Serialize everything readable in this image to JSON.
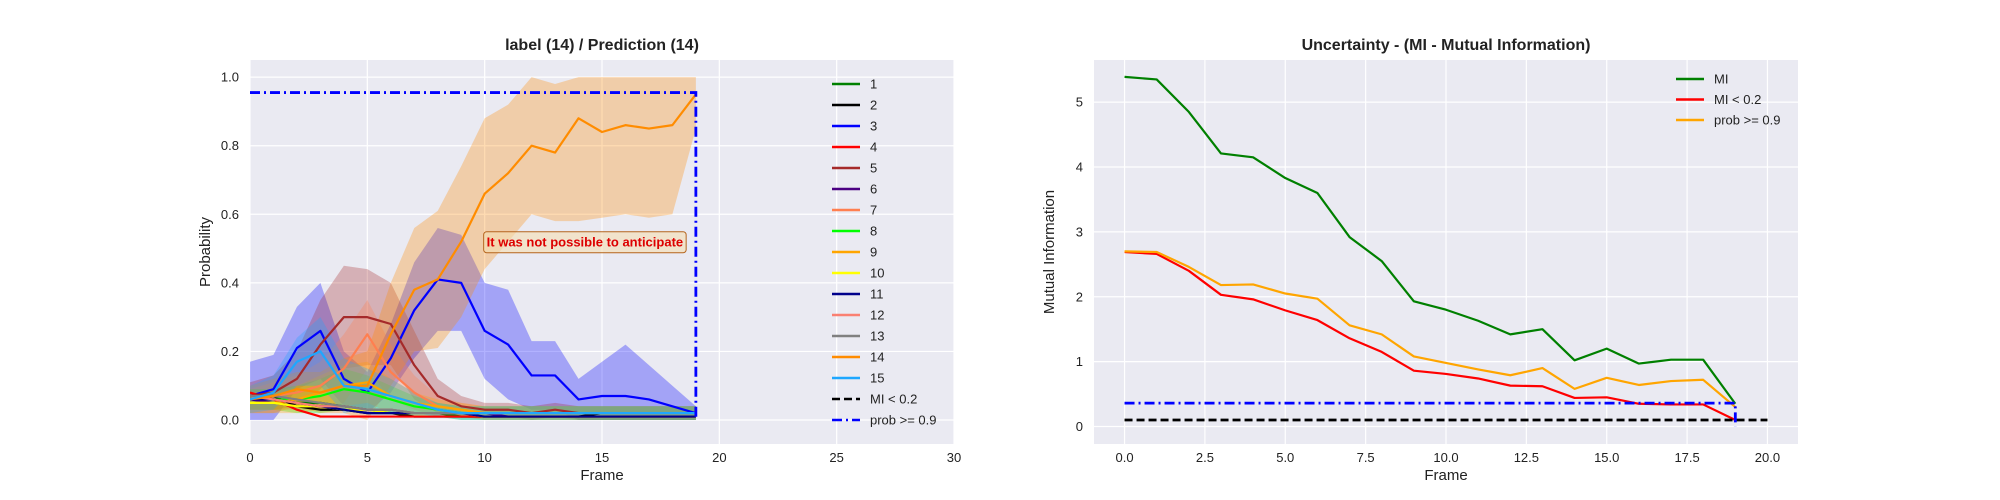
{
  "chart_data": [
    {
      "type": "line",
      "title": "label (14) / Prediction (14)",
      "xlabel": "Frame",
      "ylabel": "Probability",
      "xlim": [
        0,
        30
      ],
      "ylim": [
        -0.07,
        1.05
      ],
      "xticks": [
        "0",
        "5",
        "10",
        "15",
        "20",
        "25",
        "30"
      ],
      "yticks": [
        "0.0",
        "0.2",
        "0.4",
        "0.6",
        "0.8",
        "1.0"
      ],
      "grid": true,
      "legend_position": "right",
      "x": [
        0,
        1,
        2,
        3,
        4,
        5,
        6,
        7,
        8,
        9,
        10,
        11,
        12,
        13,
        14,
        15,
        16,
        17,
        18,
        19
      ],
      "series": [
        {
          "name": "1",
          "color": "#008000",
          "values": [
            0.07,
            0.06,
            0.05,
            0.05,
            0.04,
            0.03,
            0.02,
            0.02,
            0.02,
            0.01,
            0.01,
            0.01,
            0.01,
            0.01,
            0.01,
            0.01,
            0.01,
            0.01,
            0.01,
            0.01
          ]
        },
        {
          "name": "2",
          "color": "#000000",
          "values": [
            0.07,
            0.07,
            0.04,
            0.03,
            0.03,
            0.02,
            0.02,
            0.01,
            0.01,
            0.01,
            0.01,
            0.01,
            0.01,
            0.01,
            0.01,
            0.02,
            0.02,
            0.02,
            0.02,
            0.02
          ],
          "band": [
            0.03,
            0.04
          ]
        },
        {
          "name": "3",
          "color": "#0000ff",
          "values": [
            0.07,
            0.09,
            0.21,
            0.26,
            0.12,
            0.08,
            0.18,
            0.32,
            0.41,
            0.4,
            0.26,
            0.22,
            0.13,
            0.13,
            0.06,
            0.07,
            0.07,
            0.06,
            0.04,
            0.02
          ],
          "band": [
            0.1,
            0.1,
            0.12,
            0.14,
            0.08,
            0.06,
            0.1,
            0.14,
            0.15,
            0.14,
            0.14,
            0.16,
            0.1,
            0.1,
            0.06,
            0.1,
            0.15,
            0.1,
            0.06,
            0.02
          ]
        },
        {
          "name": "4",
          "color": "#ff0000",
          "values": [
            0.08,
            0.06,
            0.03,
            0.01,
            0.01,
            0.01,
            0.01,
            0.01,
            0.01,
            0.01,
            0.01,
            0.01,
            0.01,
            0.01,
            0.01,
            0.01,
            0.01,
            0.01,
            0.01,
            0.01
          ]
        },
        {
          "name": "5",
          "color": "#a52a2a",
          "values": [
            0.07,
            0.08,
            0.12,
            0.22,
            0.3,
            0.3,
            0.28,
            0.16,
            0.07,
            0.04,
            0.03,
            0.03,
            0.02,
            0.03,
            0.02,
            0.02,
            0.02,
            0.02,
            0.02,
            0.02
          ],
          "band": [
            0.04,
            0.05,
            0.08,
            0.13,
            0.15,
            0.14,
            0.12,
            0.1,
            0.05,
            0.03,
            0.02,
            0.02,
            0.02,
            0.02,
            0.02,
            0.02,
            0.02,
            0.02,
            0.02,
            0.02
          ]
        },
        {
          "name": "6",
          "color": "#4b0082",
          "values": [
            0.06,
            0.05,
            0.04,
            0.04,
            0.04,
            0.03,
            0.03,
            0.02,
            0.02,
            0.02,
            0.02,
            0.01,
            0.01,
            0.01,
            0.01,
            0.01,
            0.01,
            0.01,
            0.01,
            0.01
          ]
        },
        {
          "name": "7",
          "color": "#ff7f50",
          "values": [
            0.06,
            0.07,
            0.08,
            0.1,
            0.15,
            0.25,
            0.14,
            0.08,
            0.04,
            0.03,
            0.02,
            0.02,
            0.02,
            0.02,
            0.02,
            0.02,
            0.02,
            0.02,
            0.02,
            0.02
          ],
          "band": [
            0.03,
            0.04,
            0.05,
            0.07,
            0.1,
            0.1,
            0.08,
            0.05,
            0.03,
            0.02,
            0.02,
            0.02,
            0.02,
            0.02,
            0.02,
            0.02,
            0.02,
            0.02,
            0.02,
            0.02
          ]
        },
        {
          "name": "8",
          "color": "#00ff00",
          "values": [
            0.06,
            0.06,
            0.06,
            0.07,
            0.09,
            0.08,
            0.06,
            0.04,
            0.03,
            0.02,
            0.02,
            0.02,
            0.02,
            0.02,
            0.02,
            0.02,
            0.02,
            0.02,
            0.02,
            0.02
          ],
          "band": [
            0.03,
            0.03,
            0.04,
            0.05,
            0.06,
            0.05,
            0.04,
            0.03,
            0.02,
            0.02,
            0.02,
            0.02,
            0.02,
            0.02,
            0.02,
            0.02,
            0.02,
            0.02,
            0.02,
            0.02
          ]
        },
        {
          "name": "9",
          "color": "#ffa500",
          "values": [
            0.05,
            0.05,
            0.06,
            0.08,
            0.1,
            0.11,
            0.07,
            0.05,
            0.04,
            0.03,
            0.02,
            0.02,
            0.02,
            0.02,
            0.02,
            0.02,
            0.02,
            0.02,
            0.02,
            0.02
          ],
          "band": [
            0.03,
            0.03,
            0.04,
            0.05,
            0.06,
            0.06,
            0.05,
            0.03,
            0.02,
            0.02,
            0.02,
            0.02,
            0.02,
            0.02,
            0.02,
            0.02,
            0.02,
            0.02,
            0.02,
            0.02
          ]
        },
        {
          "name": "10",
          "color": "#ffff00",
          "values": [
            0.05,
            0.05,
            0.04,
            0.04,
            0.03,
            0.03,
            0.02,
            0.02,
            0.02,
            0.02,
            0.01,
            0.01,
            0.01,
            0.01,
            0.01,
            0.01,
            0.01,
            0.01,
            0.01,
            0.01
          ]
        },
        {
          "name": "11",
          "color": "#00008b",
          "values": [
            0.06,
            0.06,
            0.05,
            0.04,
            0.03,
            0.02,
            0.02,
            0.02,
            0.02,
            0.02,
            0.01,
            0.01,
            0.01,
            0.01,
            0.01,
            0.01,
            0.01,
            0.01,
            0.01,
            0.01
          ]
        },
        {
          "name": "12",
          "color": "#fa8072",
          "values": [
            0.07,
            0.06,
            0.05,
            0.04,
            0.04,
            0.03,
            0.03,
            0.02,
            0.02,
            0.02,
            0.02,
            0.02,
            0.02,
            0.02,
            0.02,
            0.02,
            0.02,
            0.02,
            0.02,
            0.02
          ]
        },
        {
          "name": "13",
          "color": "#808080",
          "values": [
            0.07,
            0.07,
            0.06,
            0.05,
            0.04,
            0.03,
            0.03,
            0.02,
            0.02,
            0.02,
            0.02,
            0.02,
            0.02,
            0.02,
            0.02,
            0.02,
            0.02,
            0.02,
            0.02,
            0.02
          ]
        },
        {
          "name": "14",
          "color": "#ff8c00",
          "values": [
            0.06,
            0.07,
            0.09,
            0.08,
            0.1,
            0.1,
            0.25,
            0.38,
            0.41,
            0.52,
            0.66,
            0.72,
            0.8,
            0.78,
            0.88,
            0.84,
            0.86,
            0.85,
            0.86,
            0.95
          ],
          "band": [
            0.04,
            0.05,
            0.05,
            0.06,
            0.08,
            0.1,
            0.15,
            0.18,
            0.2,
            0.22,
            0.22,
            0.2,
            0.2,
            0.2,
            0.3,
            0.25,
            0.26,
            0.26,
            0.26,
            0.1
          ]
        },
        {
          "name": "15",
          "color": "#1ea7ff",
          "values": [
            0.06,
            0.08,
            0.17,
            0.2,
            0.1,
            0.09,
            0.07,
            0.05,
            0.03,
            0.02,
            0.02,
            0.02,
            0.02,
            0.02,
            0.02,
            0.02,
            0.02,
            0.02,
            0.02,
            0.02
          ],
          "band": [
            0.04,
            0.05,
            0.07,
            0.1,
            0.08,
            0.06,
            0.05,
            0.03,
            0.02,
            0.02,
            0.02,
            0.02,
            0.02,
            0.02,
            0.02,
            0.02,
            0.02,
            0.02,
            0.02,
            0.02
          ]
        }
      ],
      "reference_lines": [
        {
          "name": "MI < 0.2",
          "color": "#000000",
          "style": "dashed",
          "points": []
        },
        {
          "name": "prob >= 0.9",
          "color": "#0000ff",
          "style": "dashdot",
          "points": [
            [
              0,
              0.955
            ],
            [
              19,
              0.955
            ],
            [
              19,
              0
            ]
          ]
        }
      ],
      "annotation": {
        "text": "It was not possible to anticipate",
        "x": 10,
        "y": 0.52,
        "color": "#dd0000"
      }
    },
    {
      "type": "line",
      "title": "Uncertainty - (MI - Mutual Information)",
      "xlabel": "Frame",
      "ylabel": "Mutual Information",
      "xlim": [
        -0.95,
        20.95
      ],
      "ylim": [
        -0.27,
        5.65
      ],
      "xticks": [
        "0.0",
        "2.5",
        "5.0",
        "7.5",
        "10.0",
        "12.5",
        "15.0",
        "17.5",
        "20.0"
      ],
      "yticks": [
        "0",
        "1",
        "2",
        "3",
        "4",
        "5"
      ],
      "grid": true,
      "legend_position": "top-right",
      "x": [
        0,
        1,
        2,
        3,
        4,
        5,
        6,
        7,
        8,
        9,
        10,
        11,
        12,
        13,
        14,
        15,
        16,
        17,
        18,
        19
      ],
      "series": [
        {
          "name": "MI",
          "color": "#008000",
          "values": [
            5.39,
            5.35,
            4.85,
            4.21,
            4.15,
            3.83,
            3.6,
            2.92,
            2.55,
            1.93,
            1.8,
            1.63,
            1.42,
            1.5,
            1.02,
            1.2,
            0.97,
            1.03,
            1.03,
            0.35
          ]
        },
        {
          "name": "MI < 0.2",
          "color": "#ff0000",
          "values": [
            2.69,
            2.66,
            2.4,
            2.03,
            1.96,
            1.79,
            1.64,
            1.36,
            1.15,
            0.86,
            0.81,
            0.74,
            0.63,
            0.62,
            0.44,
            0.45,
            0.35,
            0.34,
            0.34,
            0.1
          ]
        },
        {
          "name": "prob >= 0.9",
          "color": "#ffa500",
          "values": [
            2.7,
            2.69,
            2.46,
            2.18,
            2.19,
            2.05,
            1.97,
            1.56,
            1.42,
            1.08,
            0.98,
            0.88,
            0.79,
            0.9,
            0.58,
            0.75,
            0.64,
            0.7,
            0.72,
            0.3
          ]
        }
      ],
      "reference_lines": [
        {
          "name": "MI < 0.2",
          "color": "#000000",
          "style": "dashed",
          "points": [
            [
              0,
              0.1
            ],
            [
              20,
              0.1
            ]
          ]
        },
        {
          "name": "prob >= 0.9",
          "color": "#0000ff",
          "style": "dashdot",
          "points": [
            [
              0,
              0.36
            ],
            [
              19,
              0.36
            ],
            [
              19,
              0
            ]
          ]
        }
      ]
    }
  ]
}
